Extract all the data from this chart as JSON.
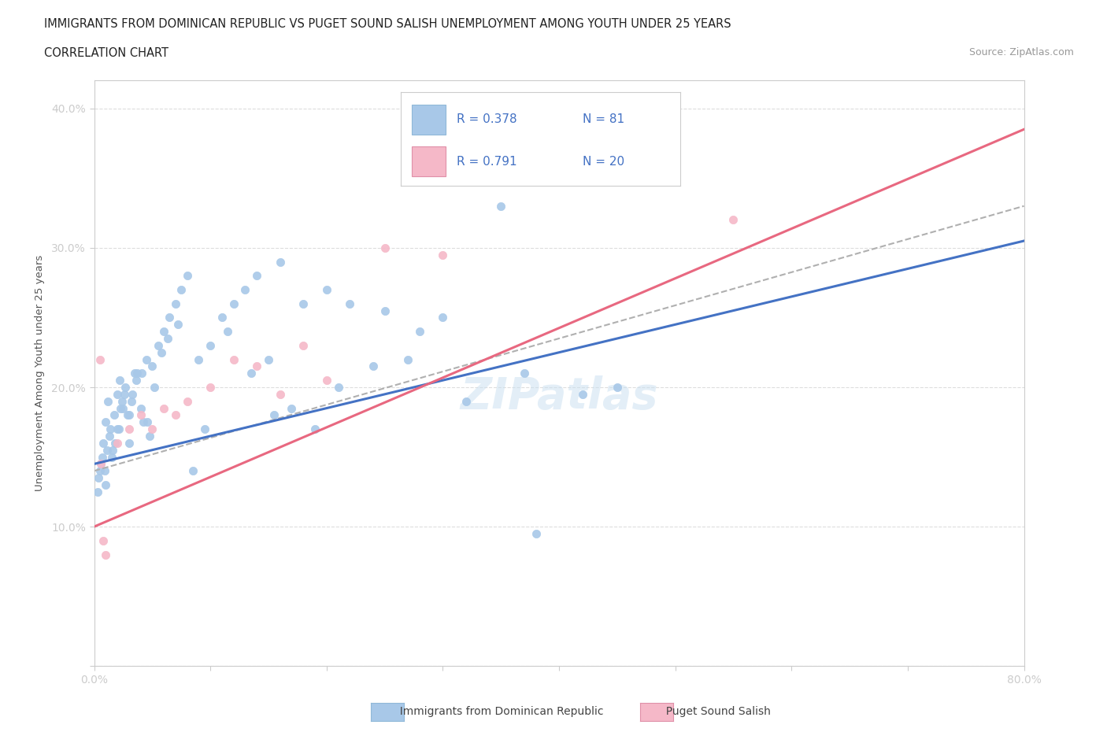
{
  "title_line1": "IMMIGRANTS FROM DOMINICAN REPUBLIC VS PUGET SOUND SALISH UNEMPLOYMENT AMONG YOUTH UNDER 25 YEARS",
  "title_line2": "CORRELATION CHART",
  "source_text": "Source: ZipAtlas.com",
  "ylabel": "Unemployment Among Youth under 25 years",
  "watermark": "ZIPatlas",
  "legend_r1": "R = 0.378",
  "legend_n1": "N = 81",
  "legend_r2": "R = 0.791",
  "legend_n2": "N = 20",
  "blue_scatter_x": [
    1.0,
    1.5,
    2.0,
    2.5,
    3.0,
    3.5,
    4.0,
    4.5,
    5.0,
    5.5,
    6.0,
    6.5,
    7.0,
    7.5,
    8.0,
    9.0,
    10.0,
    11.0,
    12.0,
    13.0,
    14.0,
    15.0,
    16.0,
    18.0,
    20.0,
    22.0,
    25.0,
    28.0,
    30.0,
    35.0,
    0.3,
    0.5,
    0.7,
    0.9,
    1.1,
    1.3,
    1.6,
    1.8,
    2.1,
    2.3,
    2.6,
    2.9,
    3.2,
    3.6,
    4.1,
    4.6,
    5.2,
    5.8,
    6.3,
    7.2,
    8.5,
    9.5,
    11.5,
    13.5,
    15.5,
    17.0,
    19.0,
    21.0,
    24.0,
    27.0,
    32.0,
    37.0,
    42.0,
    0.4,
    0.6,
    0.8,
    1.0,
    1.2,
    1.4,
    1.7,
    2.0,
    2.2,
    2.4,
    2.7,
    3.0,
    3.3,
    3.7,
    4.2,
    4.8,
    38.0,
    45.0
  ],
  "blue_scatter_y": [
    13.0,
    15.0,
    17.0,
    18.5,
    16.0,
    21.0,
    18.5,
    22.0,
    21.5,
    23.0,
    24.0,
    25.0,
    26.0,
    27.0,
    28.0,
    22.0,
    23.0,
    25.0,
    26.0,
    27.0,
    28.0,
    22.0,
    29.0,
    26.0,
    27.0,
    26.0,
    25.5,
    24.0,
    25.0,
    33.0,
    12.5,
    14.0,
    15.0,
    14.0,
    15.5,
    16.5,
    15.5,
    16.0,
    17.0,
    18.5,
    19.5,
    18.0,
    19.0,
    20.5,
    21.0,
    17.5,
    20.0,
    22.5,
    23.5,
    24.5,
    14.0,
    17.0,
    24.0,
    21.0,
    18.0,
    18.5,
    17.0,
    20.0,
    21.5,
    22.0,
    19.0,
    21.0,
    19.5,
    13.5,
    14.5,
    16.0,
    17.5,
    19.0,
    17.0,
    18.0,
    19.5,
    20.5,
    19.0,
    20.0,
    18.0,
    19.5,
    21.0,
    17.5,
    16.5,
    9.5,
    20.0
  ],
  "pink_scatter_x": [
    0.5,
    0.8,
    1.0,
    2.0,
    3.0,
    4.0,
    5.0,
    6.0,
    7.0,
    8.0,
    10.0,
    12.0,
    14.0,
    16.0,
    18.0,
    20.0,
    25.0,
    30.0,
    55.0,
    0.6
  ],
  "pink_scatter_y": [
    22.0,
    9.0,
    8.0,
    16.0,
    17.0,
    18.0,
    17.0,
    18.5,
    18.0,
    19.0,
    20.0,
    22.0,
    21.5,
    19.5,
    23.0,
    20.5,
    30.0,
    29.5,
    32.0,
    14.5
  ],
  "blue_line_x": [
    0.0,
    80.0
  ],
  "blue_line_y": [
    14.5,
    30.5
  ],
  "pink_line_x": [
    0.0,
    80.0
  ],
  "pink_line_y": [
    10.0,
    38.5
  ],
  "dash_line_x": [
    0.0,
    80.0
  ],
  "dash_line_y": [
    14.0,
    33.0
  ],
  "blue_dot_color": "#a8c8e8",
  "pink_dot_color": "#f5b8c8",
  "blue_line_color": "#4472c4",
  "pink_line_color": "#e86880",
  "dash_line_color": "#b0b0b0",
  "title_color": "#222222",
  "axis_label_color": "#4472c4",
  "ylabel_color": "#555555",
  "source_color": "#999999",
  "bg_color": "#ffffff",
  "xlim": [
    0,
    80
  ],
  "ylim": [
    0,
    42
  ],
  "xticks": [
    0,
    10,
    20,
    30,
    40,
    50,
    60,
    70,
    80
  ],
  "yticks": [
    0,
    10,
    20,
    30,
    40
  ]
}
